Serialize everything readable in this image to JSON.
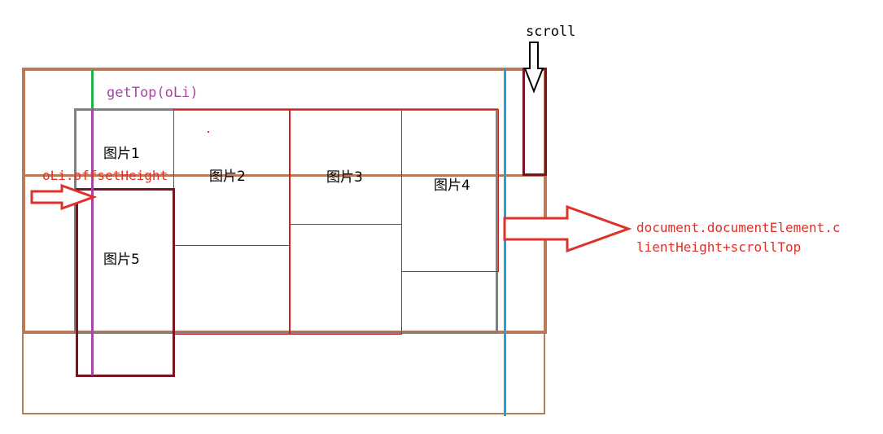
{
  "labels": {
    "scroll": "scroll",
    "get_top": "getTop(oLi)",
    "offset_height": "oLi.offsetHeight",
    "doc_height_line1": "document.documentElement.c",
    "doc_height_line2": "lientHeight+scrollTop"
  },
  "images": [
    {
      "label": "图片1"
    },
    {
      "label": "图片2"
    },
    {
      "label": "图片3"
    },
    {
      "label": "图片4"
    },
    {
      "label": "图片5"
    }
  ],
  "colors": {
    "viewport": "#b97a57",
    "container": "#7f7f7f",
    "column": "#cc2222",
    "highlight_item": "#7a1420",
    "gettop_line": "#22b14c",
    "offset_line": "#a349a4",
    "client_line": "#22a0d8",
    "gettop_text": "#a349a4",
    "annotation_red": "#e0302a",
    "scroll_arrow": "#000000"
  }
}
